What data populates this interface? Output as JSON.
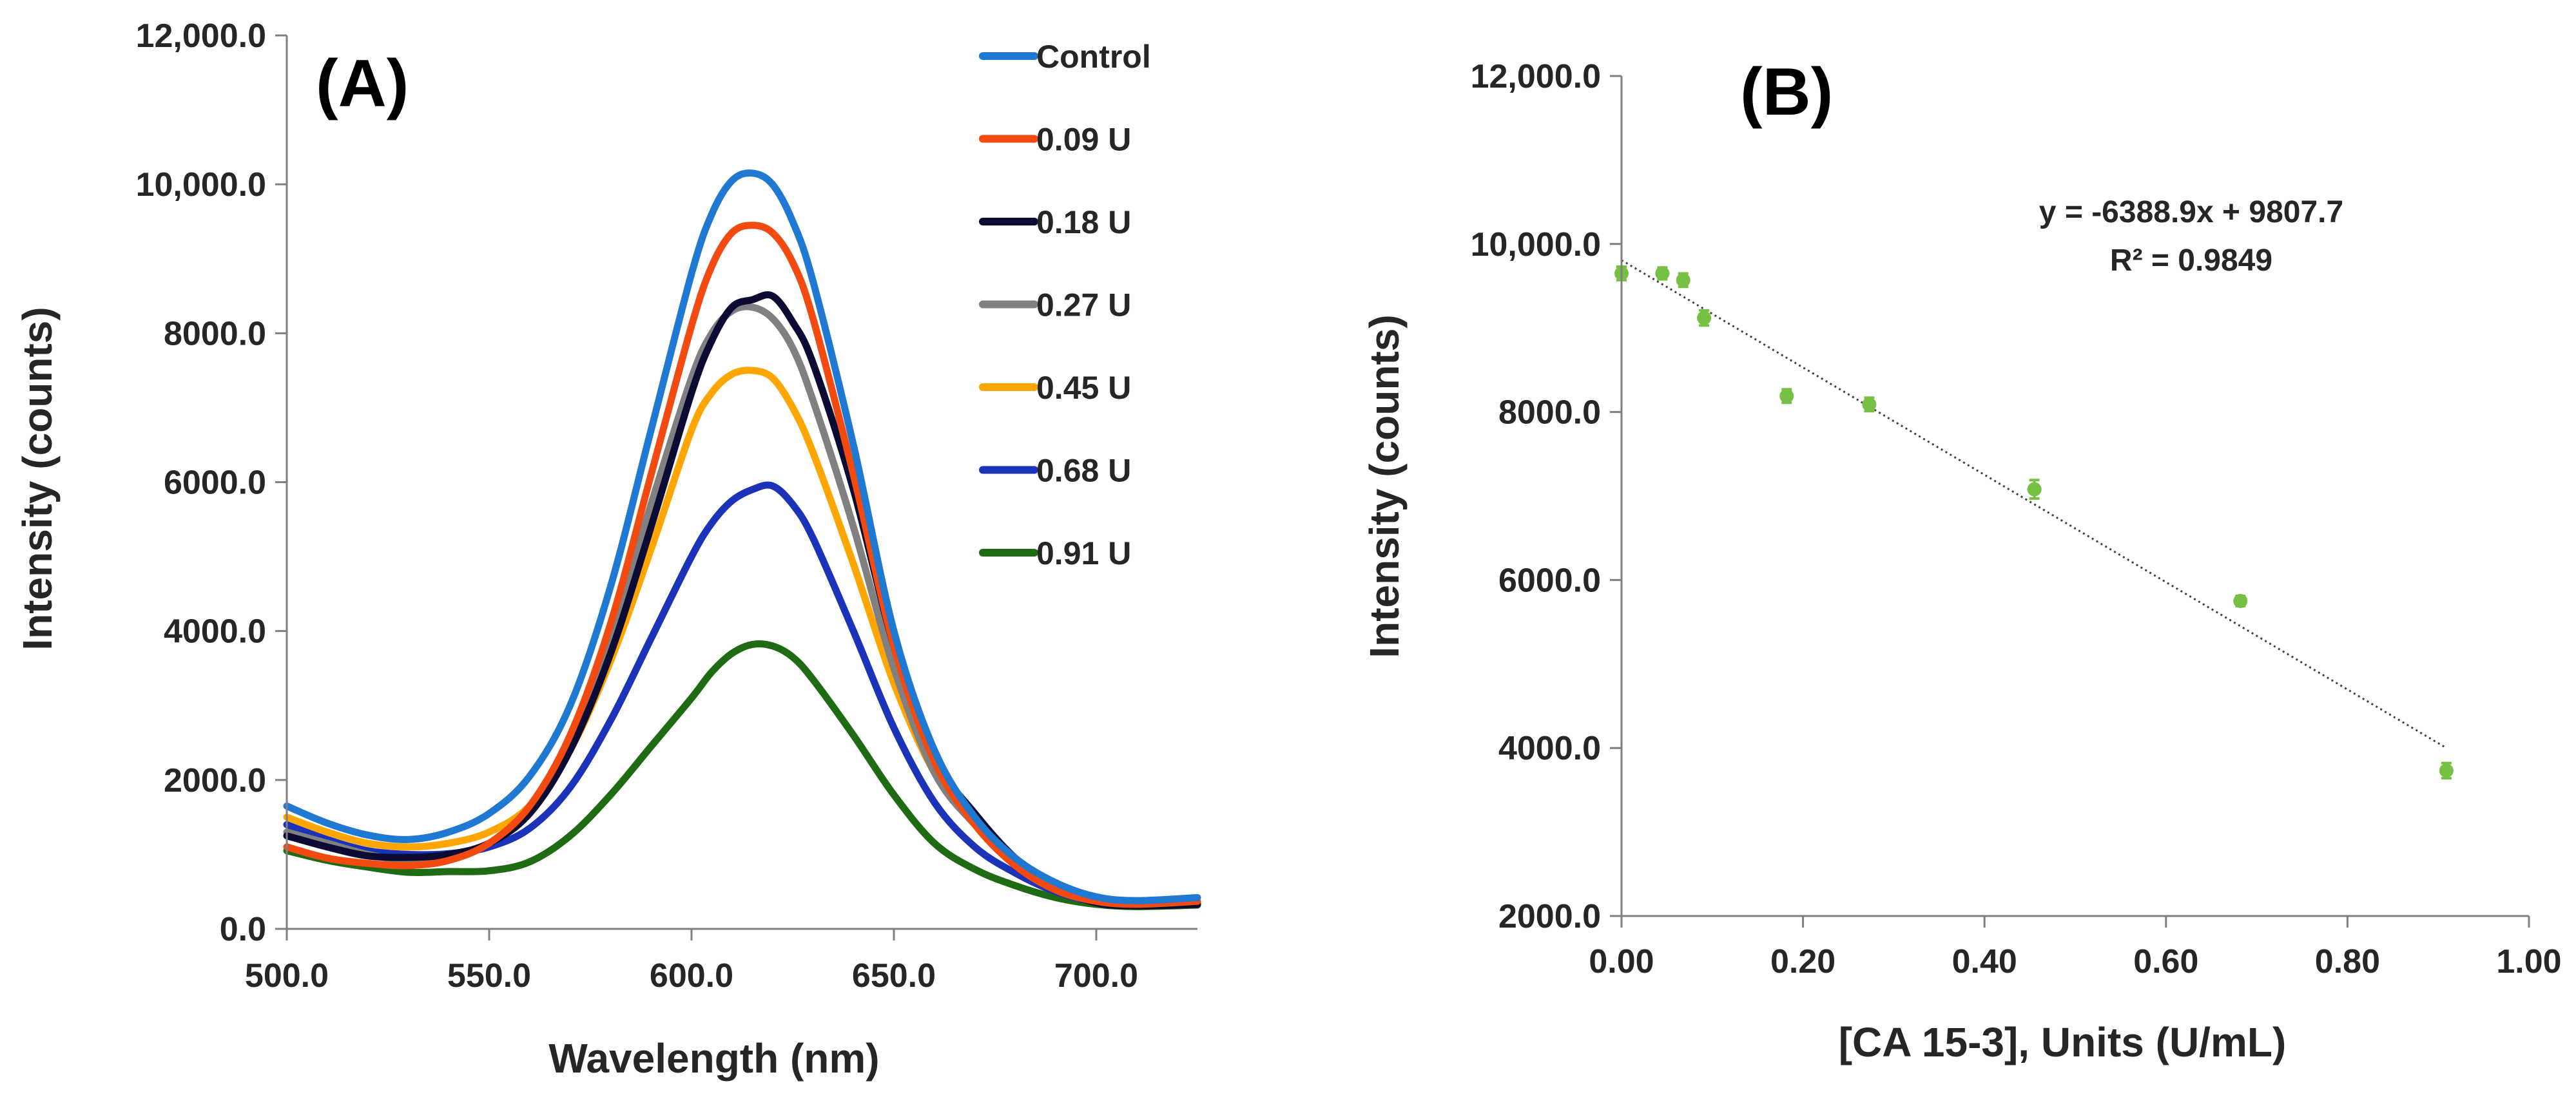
{
  "chart_data": [
    {
      "panel": "(A)",
      "type": "line",
      "xlabel": "Wavelength (nm)",
      "ylabel": "Intensity (counts)",
      "xlim": [
        500,
        725
      ],
      "ylim": [
        0,
        12000
      ],
      "x_tick_labels": [
        "500.0",
        "550.0",
        "600.0",
        "650.0",
        "700.0"
      ],
      "y_tick_labels": [
        "0.0",
        "2000.0",
        "4000.0",
        "6000.0",
        "8000.0",
        "10,000.0",
        "12,000.0"
      ],
      "x": [
        500,
        510,
        520,
        530,
        540,
        550,
        560,
        570,
        580,
        590,
        600,
        605,
        610,
        615,
        620,
        625,
        630,
        640,
        650,
        660,
        670,
        680,
        690,
        700,
        710,
        725
      ],
      "series": [
        {
          "name": "Control",
          "color": "#1F78D1",
          "values": [
            1650,
            1420,
            1260,
            1200,
            1300,
            1550,
            2050,
            3000,
            4600,
            6700,
            8800,
            9600,
            10050,
            10150,
            10000,
            9500,
            8700,
            6500,
            4000,
            2400,
            1500,
            950,
            620,
            430,
            380,
            420
          ]
        },
        {
          "name": "0.09 U",
          "color": "#F24A10",
          "values": [
            1100,
            950,
            880,
            850,
            920,
            1150,
            1650,
            2600,
            4100,
            6100,
            8100,
            8900,
            9350,
            9450,
            9350,
            8950,
            8200,
            6100,
            3800,
            2250,
            1400,
            850,
            520,
            370,
            330,
            370
          ]
        },
        {
          "name": "0.18 U",
          "color": "#0B0B33",
          "values": [
            1250,
            1100,
            980,
            960,
            1000,
            1150,
            1550,
            2400,
            3700,
            5400,
            7200,
            7900,
            8350,
            8450,
            8500,
            8150,
            7600,
            5900,
            3800,
            2300,
            1550,
            950,
            560,
            350,
            310,
            330
          ]
        },
        {
          "name": "0.27 U",
          "color": "#808080",
          "values": [
            1300,
            1150,
            1000,
            920,
            980,
            1150,
            1600,
            2500,
            3900,
            5700,
            7400,
            8000,
            8300,
            8350,
            8200,
            7800,
            7100,
            5400,
            3500,
            2100,
            1400,
            880,
            560,
            370,
            330,
            350
          ]
        },
        {
          "name": "0.45 U",
          "color": "#FFA500",
          "values": [
            1500,
            1300,
            1150,
            1100,
            1150,
            1300,
            1650,
            2400,
            3600,
            5100,
            6700,
            7200,
            7450,
            7500,
            7400,
            7000,
            6400,
            4900,
            3300,
            2100,
            1400,
            900,
            580,
            390,
            340,
            360
          ]
        },
        {
          "name": "0.68 U",
          "color": "#1A33B8",
          "values": [
            1400,
            1200,
            1050,
            1000,
            1010,
            1100,
            1350,
            1900,
            2800,
            3900,
            5000,
            5450,
            5750,
            5900,
            5950,
            5700,
            5250,
            4000,
            2700,
            1700,
            1100,
            750,
            500,
            360,
            320,
            340
          ]
        },
        {
          "name": "0.91 U",
          "color": "#1E6B14",
          "values": [
            1050,
            920,
            830,
            760,
            770,
            780,
            900,
            1250,
            1800,
            2450,
            3100,
            3450,
            3700,
            3820,
            3800,
            3650,
            3350,
            2600,
            1800,
            1150,
            800,
            580,
            420,
            330,
            300,
            320
          ]
        }
      ]
    },
    {
      "panel": "(B)",
      "type": "scatter",
      "xlabel": "[CA 15-3], Units (U/mL)",
      "ylabel": "Intensity (counts)",
      "xlim": [
        0,
        1
      ],
      "ylim": [
        2000,
        12000
      ],
      "x_tick_labels": [
        "0.00",
        "0.20",
        "0.40",
        "0.60",
        "0.80",
        "1.00"
      ],
      "y_tick_labels": [
        "2000.0",
        "4000.0",
        "6000.0",
        "8000.0",
        "10,000.0",
        "12,000.0"
      ],
      "marker_color": "#76C043",
      "trendline_color": "#404040",
      "points": [
        {
          "x": 0.0,
          "y": 9650,
          "err": 80
        },
        {
          "x": 0.045,
          "y": 9650,
          "err": 70
        },
        {
          "x": 0.068,
          "y": 9570,
          "err": 80
        },
        {
          "x": 0.091,
          "y": 9120,
          "err": 90
        },
        {
          "x": 0.182,
          "y": 8190,
          "err": 80
        },
        {
          "x": 0.273,
          "y": 8090,
          "err": 80
        },
        {
          "x": 0.455,
          "y": 7080,
          "err": 110
        },
        {
          "x": 0.682,
          "y": 5750,
          "err": 60
        },
        {
          "x": 0.909,
          "y": 3730,
          "err": 90
        }
      ],
      "trendline": {
        "slope": -6388.9,
        "intercept": 9807.7,
        "x_range": [
          0.0,
          0.909
        ]
      },
      "equation": "y = -6388.9x + 9807.7",
      "r_squared": "R² = 0.9849"
    }
  ]
}
